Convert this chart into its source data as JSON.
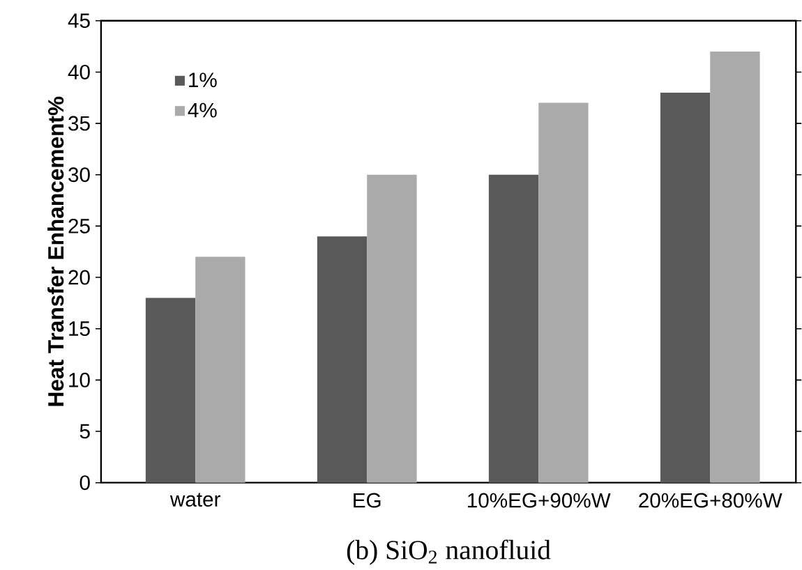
{
  "chart_data": {
    "type": "bar",
    "ylabel": "Heat Transfer Enhancement%",
    "annotations": [
      "(b) SiO$_{2}$ nanofluid"
    ],
    "categories": [
      "water",
      "EG",
      "10%EG+90%W",
      "20%EG+80%W"
    ],
    "series": [
      {
        "name": "1%",
        "color": "#595959",
        "values": [
          18,
          24,
          30,
          38
        ]
      },
      {
        "name": "4%",
        "color": "#aaaaaa",
        "values": [
          22,
          30,
          37,
          42
        ]
      }
    ],
    "ylim": [
      0,
      45
    ],
    "yticks": [
      0,
      5,
      10,
      15,
      20,
      25,
      30,
      35,
      40,
      45
    ],
    "grid": false,
    "legend": "top left"
  }
}
